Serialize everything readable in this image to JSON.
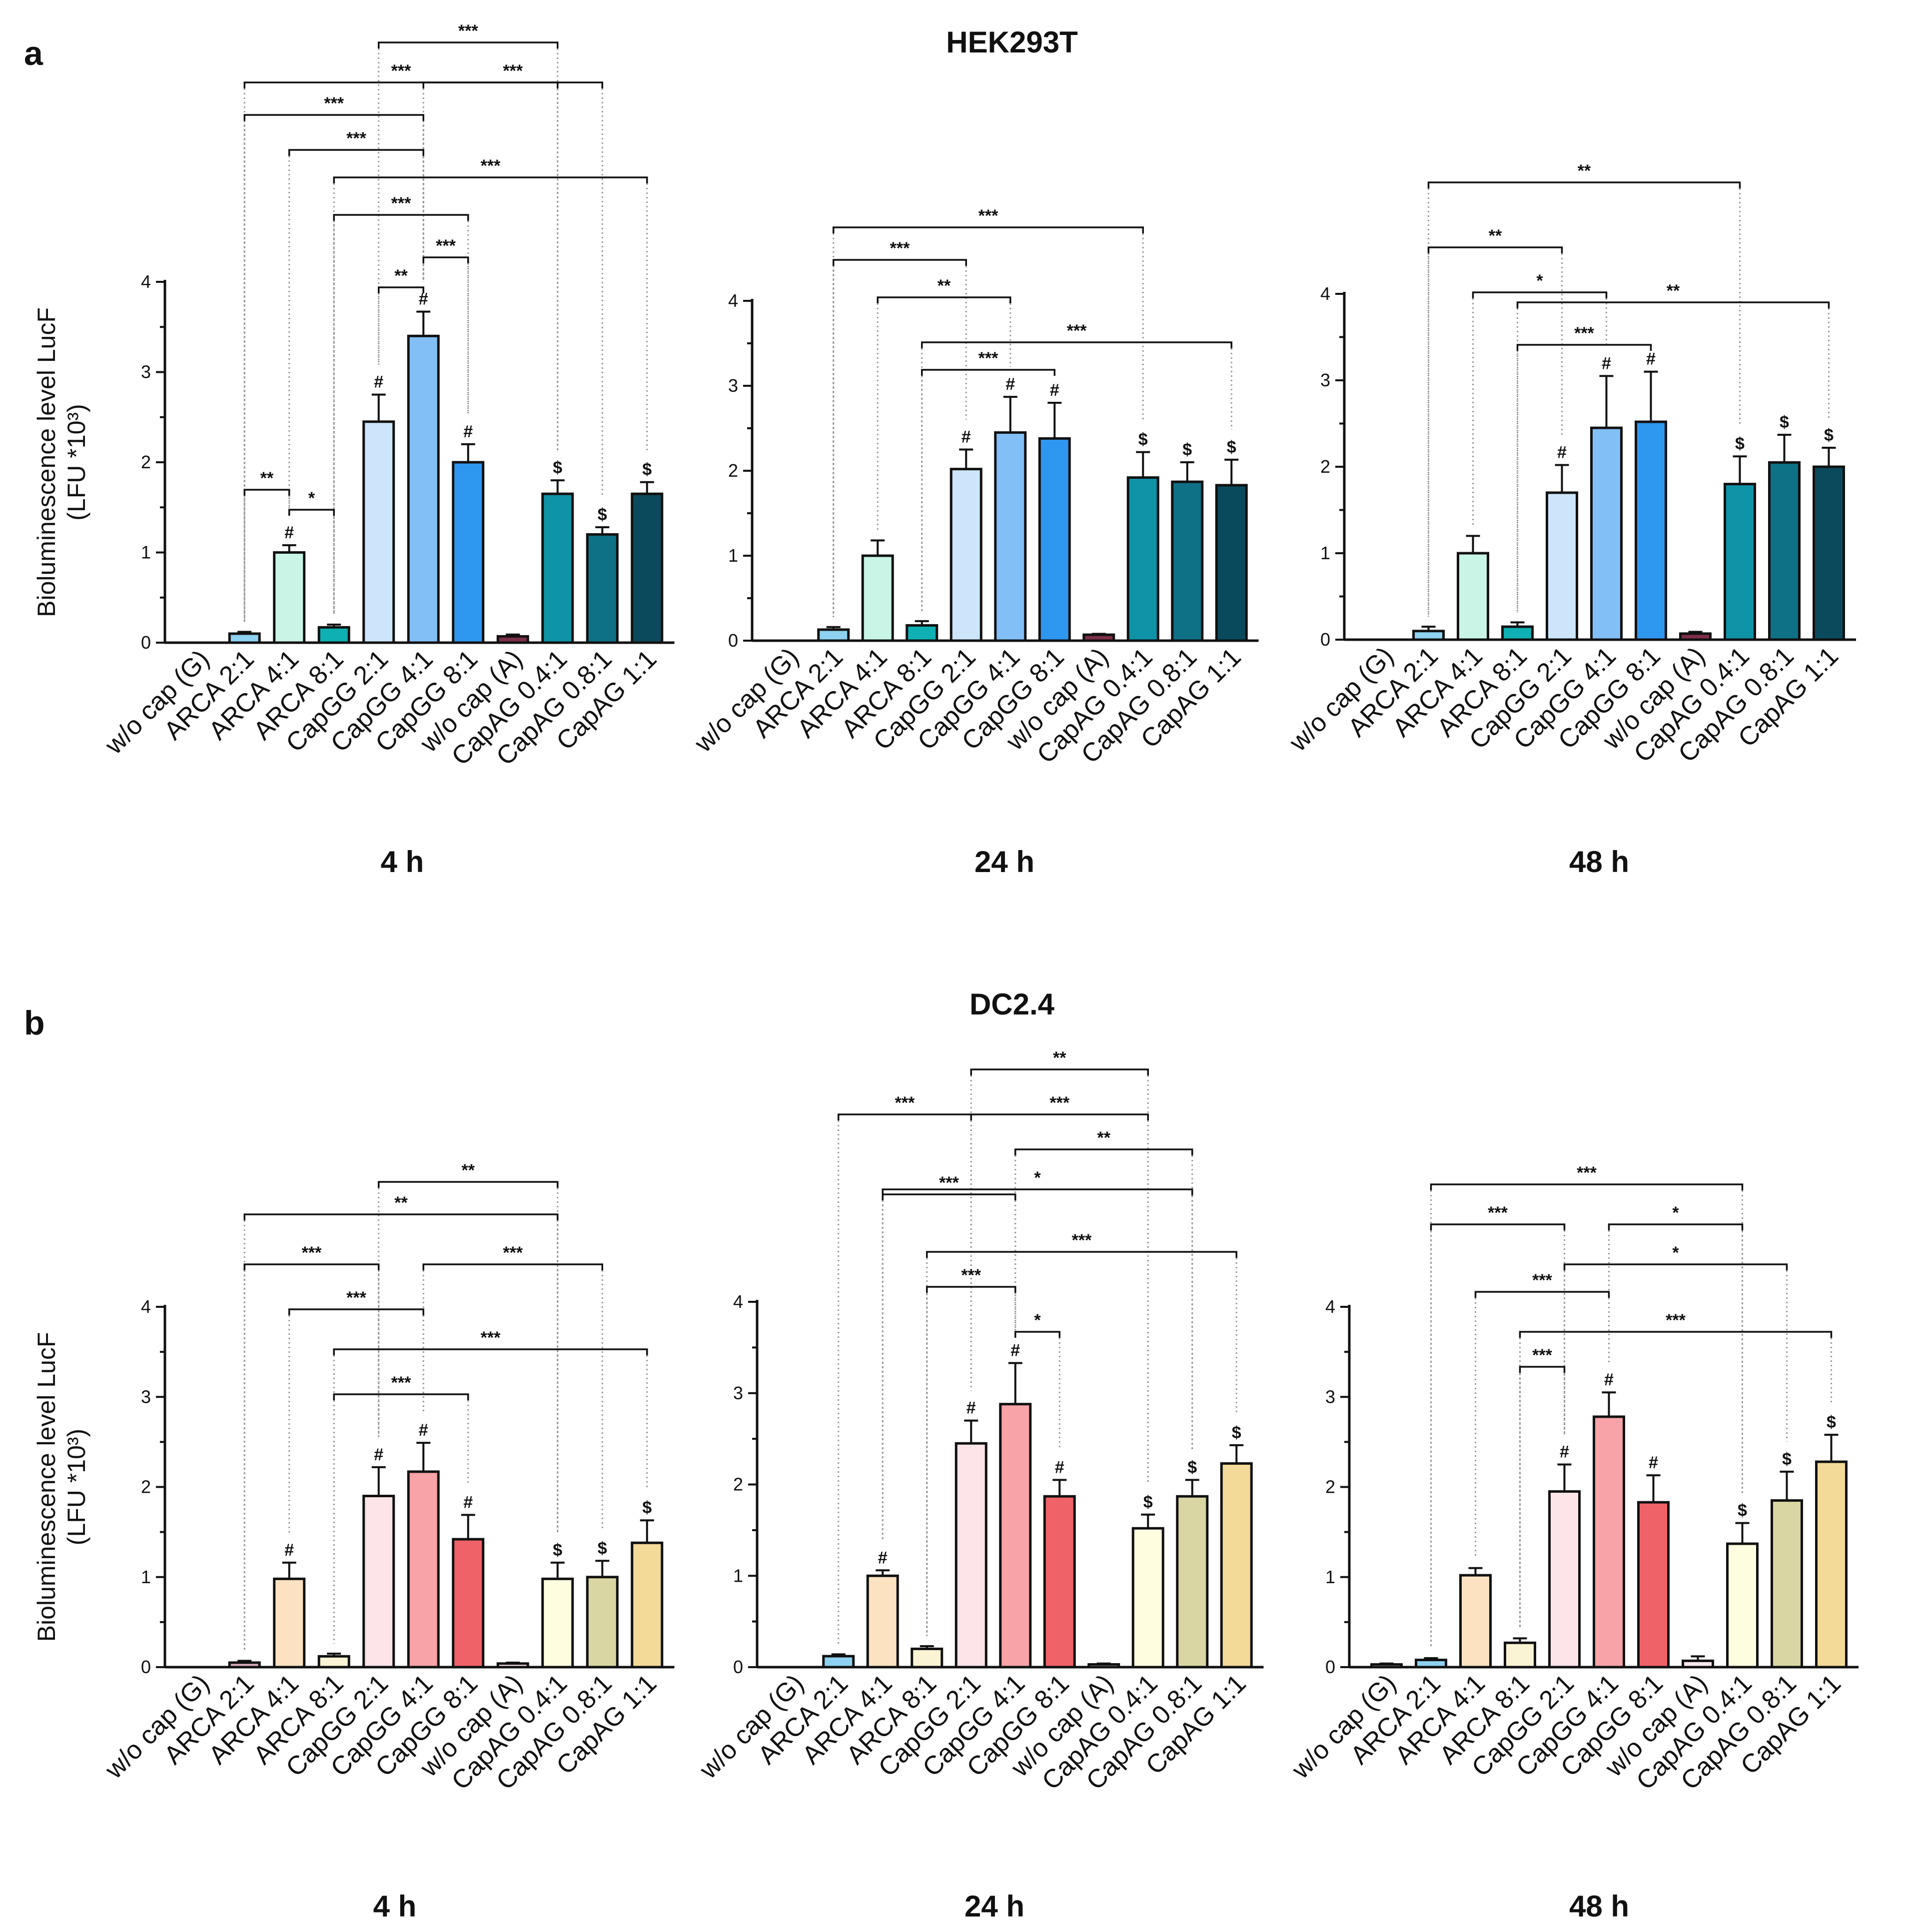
{
  "figure": {
    "panels": [
      {
        "letter": "a",
        "title": "HEK293T"
      },
      {
        "letter": "b",
        "title": "DC2.4"
      }
    ],
    "ylabel_line1": "Bioluminescence level  LucF",
    "ylabel_line2": "(LFU *10³)",
    "categories": [
      "w/o cap (G)",
      "ARCA 2:1",
      "ARCA 4:1",
      "ARCA 8:1",
      "CapGG 2:1",
      "CapGG 4:1",
      "CapGG 8:1",
      "w/o cap (A)",
      "CapAG 0.4:1",
      "CapAG 0.8:1",
      "CapAG 1:1"
    ],
    "yticks": [
      "0",
      "1",
      "2",
      "3",
      "4"
    ]
  },
  "chart_data": [
    {
      "type": "bar",
      "panel": "a",
      "cell": "HEK293T",
      "time": "4 h",
      "ylim": [
        0,
        4
      ],
      "title": "HEK293T",
      "xlabel": "4 h",
      "ylabel": "Bioluminescence level  LucF (LFU *10³)",
      "values": [
        0.0,
        0.1,
        1.0,
        0.17,
        2.45,
        3.4,
        2.0,
        0.07,
        1.65,
        1.2,
        1.65
      ],
      "errors": [
        0,
        0.02,
        0.08,
        0.03,
        0.3,
        0.27,
        0.2,
        0.02,
        0.15,
        0.08,
        0.13
      ],
      "colors": [
        "#ffffff",
        "#8ed1f0",
        "#c8f5e6",
        "#0fb0b3",
        "#cce5fb",
        "#82bff7",
        "#2e97f0",
        "#7e2f48",
        "#0f93a6",
        "#0e7185",
        "#0b4a5c"
      ],
      "marks": [
        "",
        "",
        "#",
        "",
        "#",
        "#",
        "#",
        "",
        "$",
        "$",
        "$"
      ],
      "brackets": [
        {
          "from": 4,
          "to": 8,
          "label": "***"
        },
        {
          "from": 1,
          "to": 8,
          "label": "***"
        },
        {
          "from": 5,
          "to": 9,
          "label": "***"
        },
        {
          "from": 1,
          "to": 5,
          "label": "***"
        },
        {
          "from": 2,
          "to": 5,
          "label": "***"
        },
        {
          "from": 3,
          "to": 10,
          "label": "***"
        },
        {
          "from": 3,
          "to": 6,
          "label": "***"
        },
        {
          "from": 5,
          "to": 6,
          "label": "***"
        },
        {
          "from": 4,
          "to": 5,
          "label": "**"
        },
        {
          "from": 1,
          "to": 2,
          "label": "**"
        },
        {
          "from": 2,
          "to": 3,
          "label": "*"
        }
      ]
    },
    {
      "type": "bar",
      "panel": "a",
      "cell": "HEK293T",
      "time": "24 h",
      "ylim": [
        0,
        4
      ],
      "title": "HEK293T",
      "xlabel": "24 h",
      "ylabel": "Bioluminescence level  LucF (LFU *10³)",
      "values": [
        0.0,
        0.13,
        1.0,
        0.18,
        2.02,
        2.45,
        2.38,
        0.07,
        1.92,
        1.87,
        1.83
      ],
      "errors": [
        0,
        0.03,
        0.18,
        0.05,
        0.23,
        0.42,
        0.42,
        0.01,
        0.3,
        0.23,
        0.3
      ],
      "colors": [
        "#ffffff",
        "#8ed1f0",
        "#c8f5e6",
        "#0fb0b3",
        "#cce5fb",
        "#82bff7",
        "#2e97f0",
        "#7e2f48",
        "#0f93a6",
        "#0e7185",
        "#0b4a5c"
      ],
      "marks": [
        "",
        "",
        "",
        "",
        "#",
        "#",
        "#",
        "",
        "$",
        "$",
        "$"
      ],
      "brackets": [
        {
          "from": 1,
          "to": 8,
          "label": "***"
        },
        {
          "from": 1,
          "to": 4,
          "label": "***"
        },
        {
          "from": 2,
          "to": 5,
          "label": "**"
        },
        {
          "from": 3,
          "to": 10,
          "label": "***"
        },
        {
          "from": 3,
          "to": 6,
          "label": "***"
        }
      ]
    },
    {
      "type": "bar",
      "panel": "a",
      "cell": "HEK293T",
      "time": "48 h",
      "ylim": [
        0,
        4
      ],
      "title": "HEK293T",
      "xlabel": "48 h",
      "ylabel": "Bioluminescence level  LucF (LFU *10³)",
      "values": [
        0.0,
        0.1,
        1.0,
        0.15,
        1.7,
        2.45,
        2.52,
        0.07,
        1.8,
        2.05,
        2.0
      ],
      "errors": [
        0,
        0.05,
        0.2,
        0.05,
        0.32,
        0.6,
        0.58,
        0.02,
        0.32,
        0.32,
        0.22
      ],
      "colors": [
        "#ffffff",
        "#8ed1f0",
        "#c8f5e6",
        "#0fb0b3",
        "#cce5fb",
        "#82bff7",
        "#2e97f0",
        "#7e2f48",
        "#0f93a6",
        "#0e7185",
        "#0b4a5c"
      ],
      "marks": [
        "",
        "",
        "",
        "",
        "#",
        "#",
        "#",
        "",
        "$",
        "$",
        "$"
      ],
      "brackets": [
        {
          "from": 1,
          "to": 8,
          "label": "**"
        },
        {
          "from": 1,
          "to": 4,
          "label": "**"
        },
        {
          "from": 2,
          "to": 5,
          "label": "*"
        },
        {
          "from": 3,
          "to": 10,
          "label": "**"
        },
        {
          "from": 3,
          "to": 6,
          "label": "***"
        }
      ]
    },
    {
      "type": "bar",
      "panel": "b",
      "cell": "DC2.4",
      "time": "4 h",
      "ylim": [
        0,
        4
      ],
      "title": "DC2.4",
      "xlabel": "4 h",
      "ylabel": "Bioluminescence level  LucF (LFU *10³)",
      "values": [
        0.0,
        0.05,
        0.98,
        0.12,
        1.9,
        2.17,
        1.42,
        0.04,
        0.98,
        1.0,
        1.38
      ],
      "errors": [
        0,
        0.02,
        0.18,
        0.03,
        0.32,
        0.32,
        0.27,
        0.01,
        0.18,
        0.18,
        0.25
      ],
      "colors": [
        "#ffffff",
        "#e0b0c0",
        "#fde2c2",
        "#fbf4d4",
        "#fde4e8",
        "#f8a3a7",
        "#ef6268",
        "#ffe8f0",
        "#fffde0",
        "#d9d6a3",
        "#f3da98"
      ],
      "marks": [
        "",
        "",
        "#",
        "",
        "#",
        "#",
        "#",
        "",
        "$",
        "$",
        "$"
      ],
      "brackets": [
        {
          "from": 4,
          "to": 8,
          "label": "**"
        },
        {
          "from": 1,
          "to": 8,
          "label": "**"
        },
        {
          "from": 1,
          "to": 4,
          "label": "***"
        },
        {
          "from": 5,
          "to": 9,
          "label": "***"
        },
        {
          "from": 2,
          "to": 5,
          "label": "***"
        },
        {
          "from": 3,
          "to": 10,
          "label": "***"
        },
        {
          "from": 3,
          "to": 6,
          "label": "***"
        }
      ]
    },
    {
      "type": "bar",
      "panel": "b",
      "cell": "DC2.4",
      "time": "24 h",
      "ylim": [
        0,
        4
      ],
      "title": "DC2.4",
      "xlabel": "24 h",
      "ylabel": "Bioluminescence level  LucF (LFU *10³)",
      "values": [
        0.0,
        0.12,
        1.0,
        0.2,
        2.45,
        2.88,
        1.87,
        0.03,
        1.52,
        1.87,
        2.23
      ],
      "errors": [
        0,
        0.02,
        0.06,
        0.03,
        0.25,
        0.45,
        0.18,
        0.01,
        0.15,
        0.18,
        0.2
      ],
      "colors": [
        "#ffffff",
        "#8ed1f0",
        "#fde2c2",
        "#fbf4d4",
        "#fde4e8",
        "#f8a3a7",
        "#ef6268",
        "#ffe8f0",
        "#fffde0",
        "#d9d6a3",
        "#f3da98"
      ],
      "marks": [
        "",
        "",
        "#",
        "",
        "#",
        "#",
        "#",
        "",
        "$",
        "$",
        "$"
      ],
      "brackets": [
        {
          "from": 4,
          "to": 8,
          "label": "**"
        },
        {
          "from": 4,
          "to": 8,
          "label": "***"
        },
        {
          "from": 1,
          "to": 4,
          "label": "***"
        },
        {
          "from": 5,
          "to": 9,
          "label": "**"
        },
        {
          "from": 2,
          "to": 9,
          "label": "*"
        },
        {
          "from": 2,
          "to": 5,
          "label": "***"
        },
        {
          "from": 3,
          "to": 10,
          "label": "***"
        },
        {
          "from": 3,
          "to": 5,
          "label": "***"
        },
        {
          "from": 5,
          "to": 6,
          "label": "*"
        }
      ]
    },
    {
      "type": "bar",
      "panel": "b",
      "cell": "DC2.4",
      "time": "48 h",
      "ylim": [
        0,
        4
      ],
      "title": "DC2.4",
      "xlabel": "48 h",
      "ylabel": "Bioluminescence level  LucF (LFU *10³)",
      "values": [
        0.03,
        0.08,
        1.02,
        0.27,
        1.95,
        2.78,
        1.83,
        0.07,
        1.37,
        1.85,
        2.28
      ],
      "errors": [
        0.01,
        0.02,
        0.08,
        0.05,
        0.3,
        0.27,
        0.3,
        0.05,
        0.23,
        0.32,
        0.3
      ],
      "colors": [
        "#ffffff",
        "#8ed1f0",
        "#fde2c2",
        "#fbf4d4",
        "#fde4e8",
        "#f8a3a7",
        "#ef6268",
        "#ffe8f0",
        "#fffde0",
        "#d9d6a3",
        "#f3da98"
      ],
      "marks": [
        "",
        "",
        "",
        "",
        "#",
        "#",
        "#",
        "",
        "$",
        "$",
        "$"
      ],
      "brackets": [
        {
          "from": 1,
          "to": 8,
          "label": "***"
        },
        {
          "from": 5,
          "to": 8,
          "label": "*"
        },
        {
          "from": 1,
          "to": 4,
          "label": "***"
        },
        {
          "from": 4,
          "to": 9,
          "label": "*"
        },
        {
          "from": 2,
          "to": 5,
          "label": "***"
        },
        {
          "from": 3,
          "to": 10,
          "label": "***"
        },
        {
          "from": 3,
          "to": 4,
          "label": "***"
        }
      ]
    }
  ]
}
